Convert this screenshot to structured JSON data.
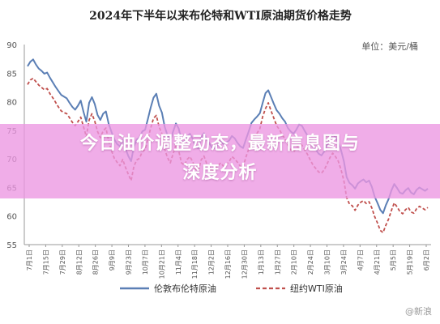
{
  "chart_data": {
    "type": "line",
    "title": "2024年下半年以来布伦特和WTI原油期货价格走势",
    "unit_label": "单位：美元/桶",
    "ylim": [
      55,
      90
    ],
    "yticks": [
      55,
      60,
      65,
      70,
      75,
      80,
      85,
      90
    ],
    "grid": false,
    "legend_position": "bottom",
    "x_ticks": [
      "7月1日",
      "7月15日",
      "7月29日",
      "8月12日",
      "8月26日",
      "9月9日",
      "9月23日",
      "10月7日",
      "10月21日",
      "11月4日",
      "11月18日",
      "12月2日",
      "12月16日",
      "12月30日",
      "1月13日",
      "1月27日",
      "2月10日",
      "2月24日",
      "3月10日",
      "3月24日",
      "4月7日",
      "4月21日",
      "5月5日",
      "5月19日",
      "6月2日"
    ],
    "series": [
      {
        "name": "伦敦布伦特原油",
        "color": "#5b7fb5",
        "style": "solid",
        "values": [
          86.2,
          87.0,
          87.4,
          86.5,
          85.8,
          85.4,
          84.9,
          85.1,
          84.2,
          83.4,
          82.6,
          81.9,
          81.2,
          80.9,
          80.6,
          79.8,
          79.1,
          78.6,
          79.3,
          80.2,
          78.2,
          76.5,
          79.8,
          80.8,
          79.6,
          77.7,
          76.8,
          77.9,
          78.3,
          76.1,
          74.7,
          73.4,
          72.6,
          72.2,
          73.3,
          71.8,
          70.5,
          69.6,
          72.2,
          73.4,
          73.7,
          74.8,
          75.1,
          77.0,
          79.0,
          80.7,
          81.4,
          79.3,
          78.1,
          75.6,
          74.1,
          73.2,
          74.8,
          76.2,
          75.3,
          73.1,
          72.9,
          73.9,
          74.4,
          73.5,
          72.1,
          71.8,
          73.7,
          74.5,
          73.4,
          72.7,
          71.8,
          71.9,
          72.5,
          73.1,
          72.6,
          72.9,
          73.2,
          74.0,
          73.6,
          72.8,
          72.2,
          71.9,
          73.4,
          74.8,
          76.3,
          76.9,
          77.4,
          78.0,
          79.8,
          81.5,
          82.0,
          80.8,
          79.6,
          78.5,
          77.9,
          77.1,
          76.5,
          75.4,
          74.8,
          74.4,
          75.1,
          76.0,
          75.8,
          74.9,
          74.1,
          73.0,
          72.1,
          71.6,
          70.9,
          70.6,
          71.3,
          72.4,
          73.5,
          74.3,
          73.8,
          72.9,
          71.5,
          69.6,
          66.8,
          65.8,
          65.4,
          64.8,
          65.7,
          66.1,
          66.4,
          65.9,
          66.2,
          65.1,
          63.4,
          62.3,
          61.1,
          60.5,
          61.9,
          63.0,
          64.5,
          65.6,
          64.9,
          64.1,
          63.9,
          64.5,
          64.9,
          64.1,
          63.8,
          64.6,
          65.0,
          64.7,
          64.4,
          64.8
        ]
      },
      {
        "name": "纽约WTI原油",
        "color": "#c0504d",
        "style": "dashed",
        "values": [
          83.0,
          83.8,
          84.1,
          83.5,
          82.9,
          82.5,
          82.1,
          82.3,
          81.4,
          80.7,
          79.9,
          79.1,
          78.4,
          78.1,
          77.9,
          77.2,
          76.4,
          75.8,
          76.5,
          77.3,
          75.6,
          73.9,
          76.8,
          77.9,
          76.6,
          74.8,
          73.7,
          74.9,
          75.4,
          73.1,
          71.4,
          70.1,
          69.4,
          68.8,
          69.9,
          68.5,
          67.3,
          66.2,
          68.7,
          69.8,
          70.1,
          71.3,
          71.6,
          73.5,
          75.4,
          77.1,
          77.6,
          75.6,
          74.4,
          71.7,
          70.2,
          69.3,
          70.9,
          72.4,
          71.4,
          69.3,
          68.9,
          69.9,
          70.4,
          69.5,
          68.2,
          67.9,
          69.8,
          70.5,
          69.2,
          68.6,
          67.9,
          68.1,
          68.8,
          69.3,
          68.7,
          69.0,
          69.5,
          70.4,
          70.0,
          69.4,
          68.7,
          68.5,
          70.3,
          71.7,
          73.3,
          73.9,
          74.5,
          75.3,
          77.4,
          78.8,
          79.8,
          78.4,
          77.1,
          75.8,
          75.1,
          74.2,
          73.5,
          72.4,
          71.6,
          71.2,
          71.8,
          72.6,
          72.4,
          71.6,
          70.8,
          69.8,
          68.9,
          68.3,
          67.7,
          67.5,
          68.1,
          69.1,
          70.2,
          71.0,
          70.4,
          69.6,
          68.1,
          66.2,
          63.2,
          62.1,
          61.8,
          61.0,
          61.9,
          62.4,
          62.7,
          62.2,
          62.5,
          61.4,
          59.9,
          58.8,
          57.5,
          57.1,
          58.4,
          59.5,
          61.0,
          62.3,
          61.6,
          60.8,
          60.4,
          61.1,
          61.5,
          60.7,
          60.5,
          61.3,
          61.7,
          61.4,
          61.1,
          61.5
        ]
      }
    ]
  },
  "overlay": {
    "headline_line1": "今日油价调整动态，最新信息图与",
    "headline_line2": "深度分析"
  },
  "watermark": "@新浪"
}
